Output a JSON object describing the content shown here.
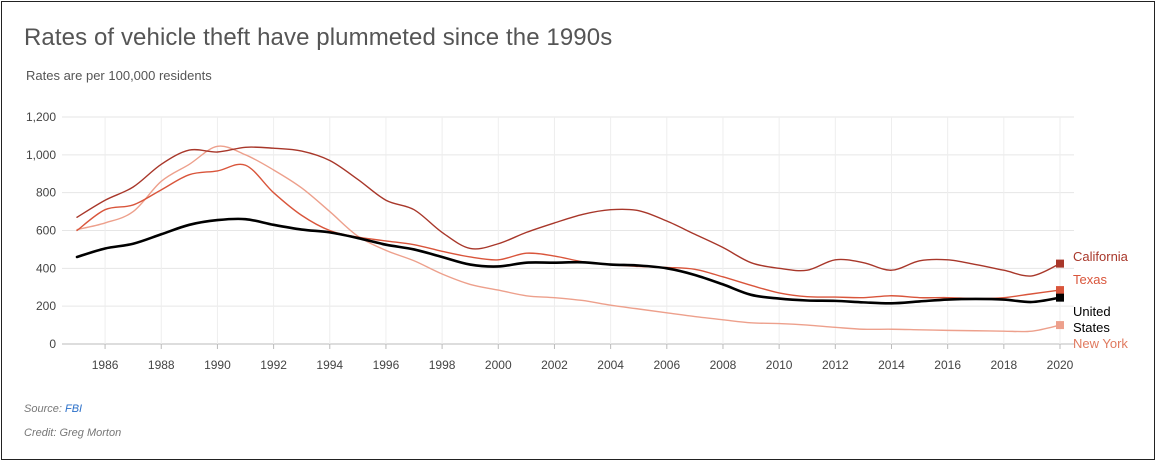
{
  "header": {
    "title": "Rates of vehicle theft have plummeted since the 1990s",
    "subtitle": "Rates are per 100,000 residents"
  },
  "footer": {
    "source_prefix": "Source: ",
    "source_link": "FBI",
    "credit": "Credit: Greg Morton"
  },
  "chart_data": {
    "type": "line",
    "title": "Rates of vehicle theft have plummeted since the 1990s",
    "subtitle": "Rates are per 100,000 residents",
    "xlabel": "",
    "ylabel": "",
    "xlim": [
      1985,
      2020
    ],
    "ylim": [
      0,
      1200
    ],
    "x_ticks": [
      "1986",
      "1988",
      "1990",
      "1992",
      "1994",
      "1996",
      "1998",
      "2000",
      "2002",
      "2004",
      "2006",
      "2008",
      "2010",
      "2012",
      "2014",
      "2016",
      "2018",
      "2020"
    ],
    "y_ticks": [
      "0",
      "200",
      "400",
      "600",
      "800",
      "1,000",
      "1,200"
    ],
    "grid": true,
    "legend": "direct labels at line ends (right)",
    "x": [
      1985,
      1986,
      1987,
      1988,
      1989,
      1990,
      1991,
      1992,
      1993,
      1994,
      1995,
      1996,
      1997,
      1998,
      1999,
      2000,
      2001,
      2002,
      2003,
      2004,
      2005,
      2006,
      2007,
      2008,
      2009,
      2010,
      2011,
      2012,
      2013,
      2014,
      2015,
      2016,
      2017,
      2018,
      2019,
      2020
    ],
    "series": [
      {
        "name": "California",
        "color": "#a8372a",
        "width": 1.4,
        "values": [
          670,
          760,
          830,
          950,
          1025,
          1015,
          1040,
          1035,
          1020,
          970,
          870,
          760,
          710,
          590,
          505,
          530,
          590,
          640,
          685,
          710,
          705,
          650,
          580,
          510,
          430,
          400,
          390,
          445,
          430,
          390,
          440,
          445,
          420,
          390,
          360,
          425
        ]
      },
      {
        "name": "Texas",
        "color": "#d9553b",
        "width": 1.4,
        "values": [
          600,
          710,
          735,
          815,
          895,
          915,
          945,
          800,
          680,
          600,
          565,
          545,
          525,
          490,
          460,
          445,
          480,
          465,
          435,
          420,
          410,
          405,
          395,
          355,
          310,
          270,
          250,
          248,
          245,
          255,
          245,
          245,
          240,
          245,
          265,
          285
        ]
      },
      {
        "name": "New York",
        "color": "#eda08c",
        "width": 1.4,
        "values": [
          605,
          640,
          700,
          860,
          950,
          1045,
          1000,
          920,
          825,
          700,
          570,
          495,
          440,
          370,
          315,
          285,
          255,
          245,
          230,
          205,
          185,
          165,
          145,
          128,
          112,
          108,
          100,
          88,
          78,
          78,
          75,
          72,
          70,
          68,
          68,
          100
        ]
      },
      {
        "name": "United States",
        "color": "#000000",
        "width": 2.6,
        "values": [
          460,
          505,
          530,
          580,
          630,
          655,
          660,
          630,
          605,
          590,
          560,
          525,
          500,
          460,
          420,
          410,
          430,
          430,
          432,
          420,
          415,
          400,
          365,
          315,
          260,
          240,
          230,
          228,
          220,
          215,
          225,
          235,
          238,
          235,
          222,
          245
        ]
      }
    ]
  }
}
